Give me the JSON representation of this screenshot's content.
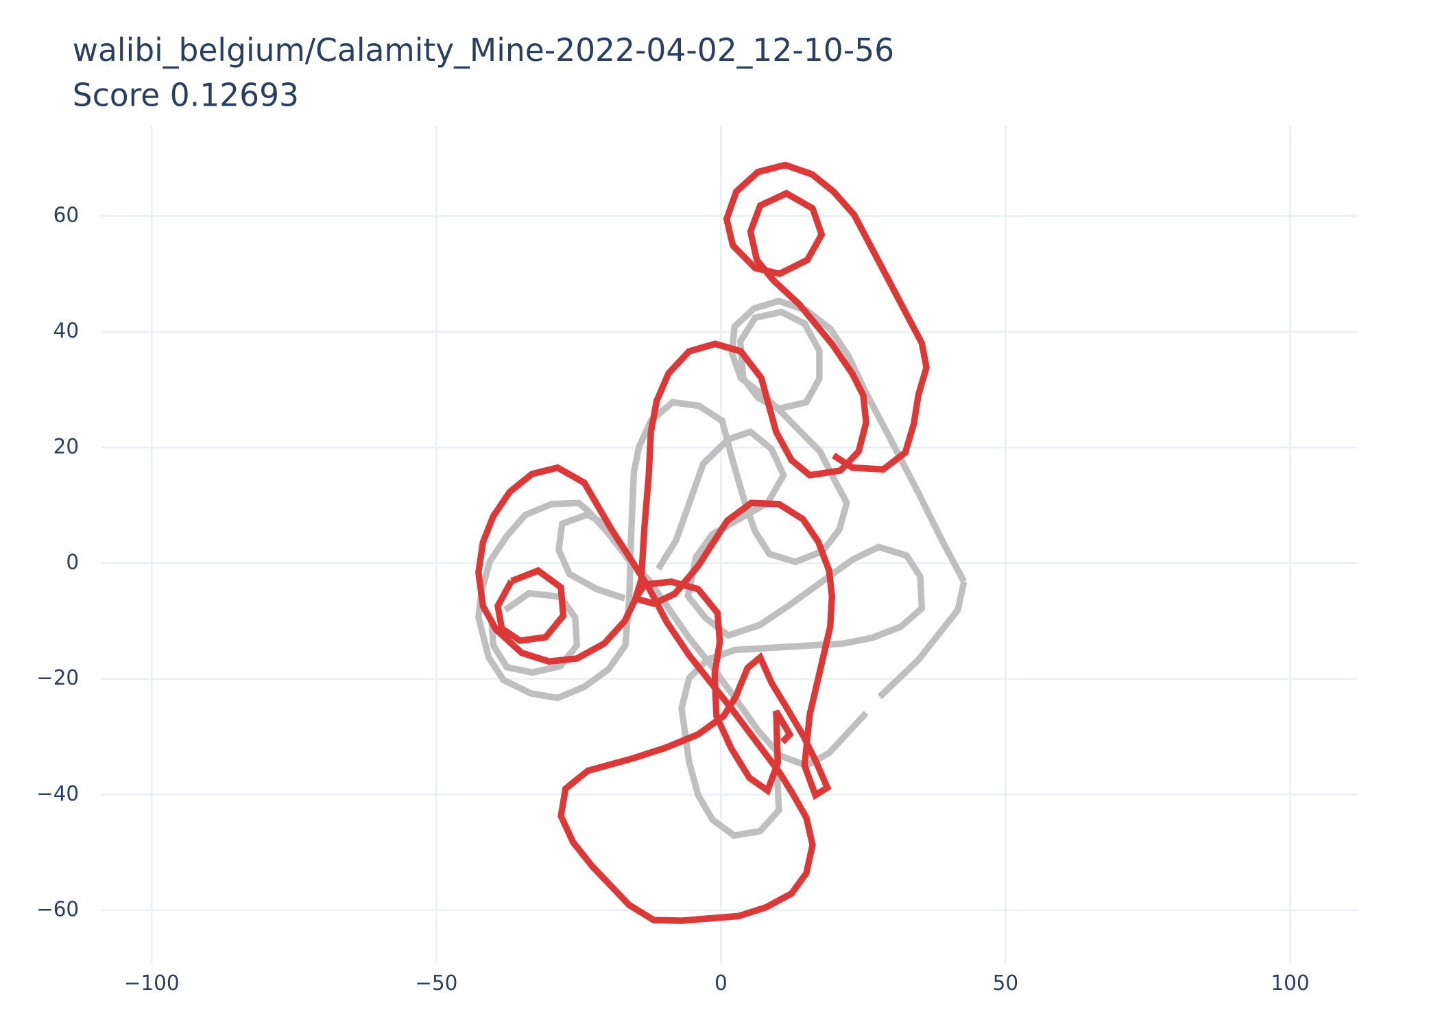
{
  "chart_data": {
    "type": "line",
    "title": "walibi_belgium/Calamity_Mine-2022-04-02_12-10-56",
    "subtitle": "Score  0.12693",
    "xlim": [
      -108.9,
      111.8
    ],
    "ylim": [
      -69.2,
      75.5
    ],
    "xticks": [
      {
        "value": -100,
        "label": "−100"
      },
      {
        "value": -50,
        "label": "−50"
      },
      0,
      50,
      100
    ],
    "yticks": [
      {
        "value": -60,
        "label": "−60"
      },
      {
        "value": -40,
        "label": "−40"
      },
      {
        "value": -20,
        "label": "−20"
      },
      0,
      20,
      40,
      60
    ],
    "grid": true,
    "series": [
      {
        "color": "#bfbfbf",
        "x": [
          42.7,
          41.6,
          34.7,
          27.9,
          null,
          25.5,
          19.0,
          15.0,
          10.5,
          6.6,
          3.2,
          -1.6,
          -5.6,
          -9.2,
          -12.7,
          -16.0,
          -19.8,
          -23.4,
          -25.0,
          -29.8,
          -34.4,
          -37.6,
          -40.6,
          -42.1,
          -42.6,
          -40.8,
          -38.2,
          -33.4,
          -28.7,
          -24.0,
          -19.7,
          -16.8,
          -16.1,
          -15.8,
          -15.3,
          -14.4,
          -12.3,
          -8.5,
          -3.9,
          0.2,
          2.1,
          4.2,
          6.0,
          8.5,
          13.1,
          17.9,
          20.8,
          22.1,
          19.8,
          17.4,
          14.2,
          10.5,
          7.3,
          3.5,
          1.9,
          2.4,
          5.8,
          10.2,
          15.0,
          19.2,
          22.4,
          25.3,
          29.8,
          34.7,
          39.0,
          42.7,
          null,
          3.9,
          6.5,
          10.2,
          15.0,
          17.3,
          17.3,
          14.7,
          10.6,
          6.0,
          3.4,
          3.9,
          null,
          -16.9,
          -21.8,
          -26.6,
          -28.5,
          -27.9,
          -23.4,
          -20.2,
          null,
          -11.0,
          -7.9,
          -5.5,
          -3.1,
          1.3,
          5.2,
          8.9,
          11.0,
          8.2,
          3.7,
          -1.5,
          -4.4,
          -5.8,
          -2.7,
          1.3,
          6.8,
          11.8,
          23.1,
          27.7,
          32.6,
          35.0,
          35.3,
          31.6,
          26.6,
          21.5,
          2.4,
          -2.4,
          -5.6,
          -6.9,
          -5.6,
          -4.0,
          -1.5,
          2.3,
          6.9,
          10.2,
          9.8,
          9.8,
          null,
          -37.9,
          -33.7,
          -28.2,
          -25.6,
          -25.3,
          -28.2,
          -33.1,
          -37.6,
          -40.0,
          -40.3
        ],
        "y": [
          -3.2,
          -8.1,
          -16.7,
          -23.1,
          null,
          -25.9,
          -32.8,
          -35.0,
          -33.3,
          -29.0,
          -24.3,
          -17.8,
          -12.9,
          -7.8,
          -2.9,
          0.3,
          5.2,
          9.1,
          10.4,
          10.2,
          8.3,
          4.7,
          0.3,
          -5.0,
          -9.4,
          -16.3,
          -20.2,
          -22.5,
          -23.3,
          -21.4,
          -18.3,
          -14.2,
          -6.1,
          4.4,
          15.7,
          20.1,
          24.6,
          27.8,
          27.2,
          24.6,
          17.6,
          10.5,
          5.5,
          1.6,
          0.2,
          2.1,
          5.8,
          10.4,
          14.7,
          19.3,
          22.5,
          26.2,
          29.1,
          32.0,
          36.4,
          40.9,
          44.0,
          45.3,
          43.7,
          40.5,
          35.8,
          29.8,
          21.4,
          12.1,
          3.6,
          -3.2,
          null,
          32.0,
          28.6,
          26.7,
          27.8,
          31.9,
          36.7,
          41.4,
          43.4,
          42.4,
          38.3,
          32.0,
          null,
          -6.1,
          -4.5,
          -1.9,
          2.3,
          6.8,
          8.4,
          6.6,
          null,
          -1.0,
          3.9,
          10.5,
          17.2,
          21.4,
          22.7,
          19.7,
          15.2,
          10.4,
          7.9,
          5.0,
          1.0,
          -5.7,
          -9.5,
          -12.5,
          -10.7,
          -7.4,
          0.6,
          2.8,
          1.3,
          -2.3,
          -7.8,
          -11.0,
          -12.9,
          -13.9,
          -15.0,
          -16.7,
          -19.9,
          -25.1,
          -34.3,
          -40.1,
          -44.3,
          -47.1,
          -46.3,
          -42.7,
          -35.3,
          -28.8,
          null,
          -8.1,
          -5.2,
          -5.8,
          -9.4,
          -14.2,
          -17.8,
          -18.9,
          -18.0,
          -14.2,
          -9.7
        ]
      },
      {
        "color": "#dc3838",
        "x": [
          19.8,
          23.1,
          28.5,
          32.4,
          33.9,
          34.7,
          36.1,
          35.3,
          23.4,
          19.8,
          16.0,
          11.3,
          6.5,
          2.7,
          1.0,
          2.1,
          6.0,
          10.3,
          15.2,
          17.7,
          16.1,
          11.5,
          6.9,
          5.2,
          6.3,
          9.2,
          13.7,
          19.5,
          23.1,
          25.0,
          25.5,
          24.2,
          21.0,
          15.6,
          12.4,
          9.7,
          7.1,
          3.5,
          -1.0,
          -5.6,
          -9.2,
          -11.3,
          -12.3,
          -12.7,
          -13.4,
          -14.0,
          -15.0,
          -11.8,
          -8.1,
          -4.0,
          1.1,
          5.3,
          10.2,
          14.4,
          17.1,
          19.0,
          19.5,
          19.2,
          17.4,
          15.6,
          14.7,
          16.6,
          18.7,
          16.8,
          14.5,
          11.3,
          8.9,
          6.9,
          4.7,
          2.6,
          0.5,
          -4.0,
          -9.7,
          -15.3,
          -23.4,
          -27.3,
          -28.1,
          -26.0,
          -22.6,
          -16.1,
          -11.8,
          -6.9,
          3.1,
          7.9,
          12.4,
          15.0,
          16.1,
          15.0,
          12.7,
          10.3,
          1.9,
          -5.6,
          -9.5,
          -12.7,
          -15.6,
          -19.2,
          -24.0,
          -28.7,
          -33.2,
          -37.1,
          -40.0,
          -41.8,
          -42.6,
          -41.8,
          -39.5,
          -35.0,
          -30.2,
          -25.3,
          -20.5,
          -16.9,
          -14.8,
          -13.4,
          -8.7,
          -4.0,
          -0.6,
          -0.2,
          -1.1,
          -0.8,
          1.8,
          5.0,
          8.2,
          10.0,
          9.7,
          12.1,
          10.8,
          null,
          -36.8,
          -32.1,
          -28.1,
          -27.7,
          -30.8,
          -35.3,
          -38.5,
          -39.2,
          -36.8
        ],
        "y": [
          18.6,
          16.5,
          16.2,
          19.1,
          24.1,
          29.1,
          33.8,
          38.0,
          60.2,
          64.2,
          67.2,
          68.8,
          67.6,
          64.2,
          59.5,
          54.9,
          51.0,
          50.0,
          52.4,
          56.8,
          61.3,
          63.9,
          61.8,
          57.3,
          52.4,
          48.9,
          44.8,
          37.9,
          32.7,
          29.0,
          24.3,
          19.3,
          16.0,
          15.2,
          17.8,
          22.7,
          32.0,
          36.6,
          37.9,
          36.6,
          32.8,
          28.0,
          22.7,
          14.9,
          6.8,
          -2.9,
          -6.1,
          -7.0,
          -5.3,
          -0.5,
          7.3,
          10.4,
          10.2,
          7.6,
          3.7,
          -1.3,
          -5.7,
          -11.0,
          -18.6,
          -26.2,
          -35.0,
          -40.1,
          -38.8,
          -34.5,
          -29.9,
          -24.6,
          -20.7,
          -16.3,
          -18.1,
          -23.1,
          -26.4,
          -29.6,
          -31.9,
          -33.7,
          -35.9,
          -39.0,
          -43.7,
          -48.2,
          -52.4,
          -59.1,
          -61.7,
          -61.8,
          -61.0,
          -59.5,
          -57.1,
          -53.6,
          -48.7,
          -44.0,
          -40.0,
          -36.2,
          -25.2,
          -15.9,
          -10.2,
          -4.2,
          0.3,
          5.8,
          13.9,
          16.5,
          15.4,
          12.3,
          8.1,
          3.6,
          -1.6,
          -7.4,
          -11.5,
          -15.5,
          -17.0,
          -16.5,
          -13.9,
          -10.0,
          -5.8,
          -3.7,
          -3.2,
          -4.5,
          -8.6,
          -13.6,
          -19.1,
          -26.4,
          -32.0,
          -37.1,
          -39.3,
          -34.5,
          -25.6,
          -29.6,
          -30.9,
          null,
          -3.1,
          -1.3,
          -4.2,
          -9.1,
          -12.8,
          -13.4,
          -11.3,
          -7.4,
          -3.1
        ]
      }
    ]
  }
}
